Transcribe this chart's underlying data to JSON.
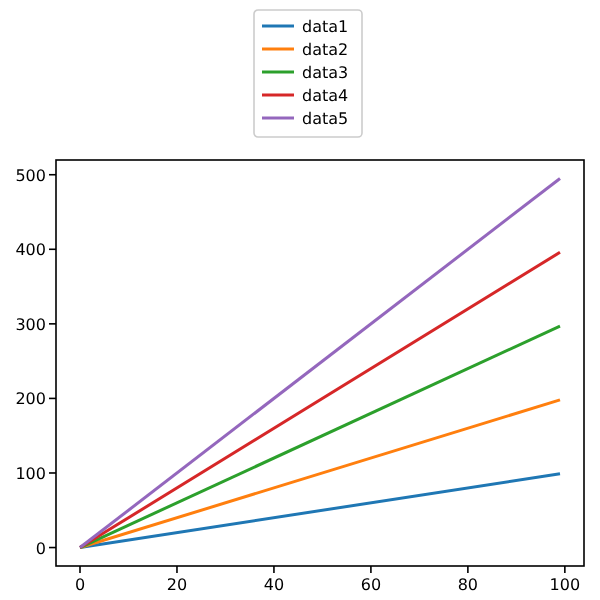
{
  "chart_data": {
    "type": "line",
    "x": [
      0,
      99
    ],
    "series": [
      {
        "name": "data1",
        "color": "#1f77b4",
        "values": [
          0,
          99
        ]
      },
      {
        "name": "data2",
        "color": "#ff7f0e",
        "values": [
          0,
          198
        ]
      },
      {
        "name": "data3",
        "color": "#2ca02c",
        "values": [
          0,
          297
        ]
      },
      {
        "name": "data4",
        "color": "#d62728",
        "values": [
          0,
          396
        ]
      },
      {
        "name": "data5",
        "color": "#9467bd",
        "values": [
          0,
          495
        ]
      }
    ],
    "xlim": [
      -4.95,
      103.95
    ],
    "xticks": [
      0,
      20,
      40,
      60,
      80,
      100
    ],
    "ylim": [
      -24.75,
      519.75
    ],
    "yticks": [
      0,
      100,
      200,
      300,
      400,
      500
    ],
    "legend": "top",
    "grid": false
  }
}
